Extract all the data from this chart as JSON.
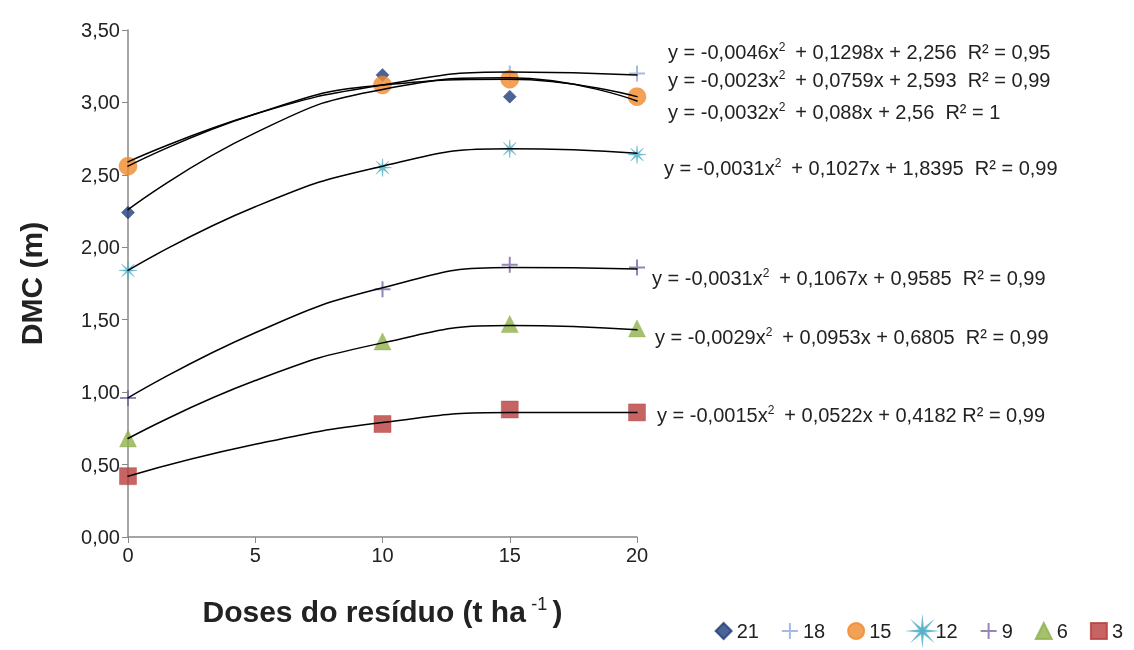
{
  "chart_data": {
    "type": "scatter",
    "xlabel": "Doses do resíduo (t ha$^{-1}$)",
    "ylabel": "DMC (m)",
    "xlim": [
      0,
      20
    ],
    "xticks": [
      0,
      5,
      10,
      15,
      20
    ],
    "ylim": [
      0,
      3.5
    ],
    "yticks": [
      {
        "value": 0,
        "label": "0,00"
      },
      {
        "value": 0.5,
        "label": "0,50"
      },
      {
        "value": 1,
        "label": "1,00"
      },
      {
        "value": 1.5,
        "label": "1,50"
      },
      {
        "value": 2,
        "label": "2,00"
      },
      {
        "value": 2.5,
        "label": "2,50"
      },
      {
        "value": 3,
        "label": "3,00"
      },
      {
        "value": 3.5,
        "label": "3,50"
      }
    ],
    "grid": false,
    "legend": "bottom right",
    "series": [
      {
        "name": "21",
        "color": "#1f3d7a",
        "marker": "diamond",
        "x": [
          0,
          10,
          15
        ],
        "values": [
          2.24,
          3.19,
          3.04
        ]
      },
      {
        "name": "18",
        "color": "#8eaadb",
        "marker": "cross",
        "x": [
          15,
          20
        ],
        "values": [
          3.2,
          3.2
        ]
      },
      {
        "name": "15",
        "color": "#f08a2c",
        "marker": "circle",
        "x": [
          0,
          10,
          15,
          20
        ],
        "values": [
          2.56,
          3.12,
          3.16,
          3.04
        ]
      },
      {
        "name": "12",
        "color": "#4bacc6",
        "marker": "star",
        "x": [
          0,
          10,
          15,
          20
        ],
        "values": [
          1.84,
          2.55,
          2.68,
          2.64
        ]
      },
      {
        "name": "9",
        "color": "#7b68a6",
        "marker": "cross",
        "x": [
          0,
          10,
          15,
          20
        ],
        "values": [
          0.96,
          1.71,
          1.88,
          1.86
        ]
      },
      {
        "name": "6",
        "color": "#8fb04a",
        "marker": "triangle",
        "x": [
          0,
          10,
          15,
          20
        ],
        "values": [
          0.68,
          1.35,
          1.47,
          1.44
        ]
      },
      {
        "name": "3",
        "color": "#b83c3c",
        "marker": "square",
        "x": [
          0,
          10,
          15,
          20
        ],
        "values": [
          0.42,
          0.78,
          0.88,
          0.86
        ]
      },
      {
        "type": "line",
        "color": "#000000",
        "marker": "none",
        "x": [
          0,
          5,
          10,
          15,
          20
        ],
        "values": [
          2.26,
          2.79,
          3.09,
          3.17,
          3.01
        ]
      },
      {
        "type": "line",
        "color": "#000000",
        "marker": "none",
        "x": [
          0,
          5,
          10,
          15,
          20
        ],
        "values": [
          2.59,
          2.92,
          3.12,
          3.21,
          3.19
        ]
      },
      {
        "type": "line",
        "color": "#000000",
        "marker": "none",
        "x": [
          0,
          5,
          10,
          15,
          20
        ],
        "values": [
          2.56,
          2.92,
          3.12,
          3.16,
          3.04
        ]
      },
      {
        "type": "line",
        "color": "#000000",
        "marker": "none",
        "x": [
          0,
          5,
          10,
          15,
          20
        ],
        "values": [
          1.84,
          2.28,
          2.56,
          2.68,
          2.65
        ]
      },
      {
        "type": "line",
        "color": "#000000",
        "marker": "none",
        "x": [
          0,
          5,
          10,
          15,
          20
        ],
        "values": [
          0.96,
          1.41,
          1.72,
          1.86,
          1.85
        ]
      },
      {
        "type": "line",
        "color": "#000000",
        "marker": "none",
        "x": [
          0,
          5,
          10,
          15,
          20
        ],
        "values": [
          0.68,
          1.08,
          1.34,
          1.46,
          1.43
        ]
      },
      {
        "type": "line",
        "color": "#000000",
        "marker": "none",
        "x": [
          0,
          5,
          10,
          15,
          20
        ],
        "values": [
          0.42,
          0.64,
          0.79,
          0.86,
          0.86
        ]
      }
    ],
    "annotations": [
      "y = -0,0046x$^{2}$ + 0,1298x + 2,256  R² = 0,95",
      "y = -0,0023x$^{2}$ + 0,0759x + 2,593  R² = 0,99",
      "y = -0,0032x$^{2}$ + 0,088x + 2,56  R² = 1",
      "y = -0,0031x$^{2}$ + 0,1027x + 1,8395  R² = 0,99",
      "y = -0,0031x$^{2}$ + 0,1067x + 0,9585  R² = 0,99",
      "y = -0,0029x$^{2}$ + 0,0953x + 0,6805  R² = 0,99",
      "y = -0,0015x$^{2}$ + 0,0522x + 0,4182 R² = 0,99"
    ]
  }
}
